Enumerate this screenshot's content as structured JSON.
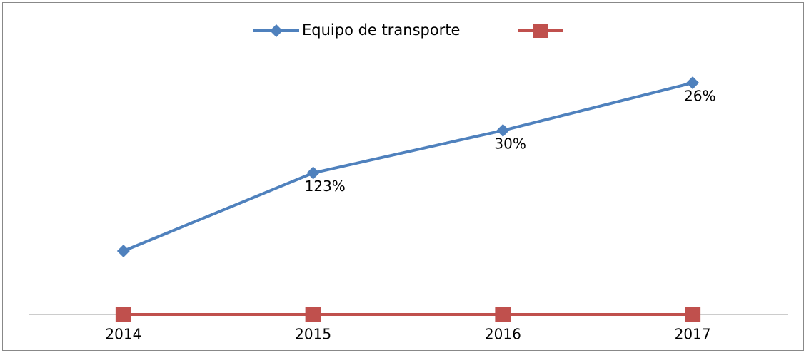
{
  "chart_data": {
    "type": "line",
    "categories": [
      "2014",
      "2015",
      "2016",
      "2017"
    ],
    "series": [
      {
        "name": "Equipo de transporte",
        "color": "#4f81bd",
        "marker": "diamond",
        "values": [
          100,
          223,
          290,
          365
        ],
        "annotations": [
          null,
          "123%",
          "30%",
          "26%"
        ]
      },
      {
        "color": "#c0504d",
        "marker": "square",
        "values": [
          0,
          0,
          0,
          0
        ]
      }
    ],
    "ylim": [
      0,
      400
    ],
    "legend": "top",
    "grid": false
  }
}
